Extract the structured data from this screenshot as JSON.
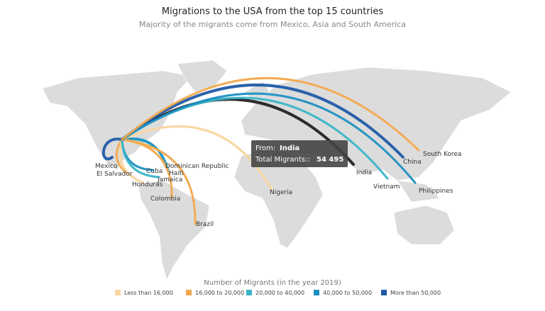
{
  "title": "Migrations to the USA from the top 15 countries",
  "subtitle": "Majority of the migrants come from Mexico, Asia and South America",
  "flows": [
    {
      "label": "Mexico",
      "color": "#1f5aa6"
    },
    {
      "label": "El Salvador",
      "color": "#f2a94e"
    },
    {
      "label": "Honduras",
      "color": "#f9d49c"
    },
    {
      "label": "Cuba",
      "color": "#1c8fc2"
    },
    {
      "label": "Jamaica",
      "color": "#3ab5c8"
    },
    {
      "label": "Haiti",
      "color": "#3ab5c8"
    },
    {
      "label": "Dominican Republic",
      "color": "#1c8fc2"
    },
    {
      "label": "Colombia",
      "color": "#f2a94e"
    },
    {
      "label": "Brazil",
      "color": "#f2a94e"
    },
    {
      "label": "Nigeria",
      "color": "#f9d49c"
    },
    {
      "label": "India",
      "color": "#222222"
    },
    {
      "label": "China",
      "color": "#1f5aa6"
    },
    {
      "label": "Vietnam",
      "color": "#3ab5c8"
    },
    {
      "label": "Philippines",
      "color": "#1c8fc2"
    },
    {
      "label": "South Korea",
      "color": "#f2a94e"
    }
  ],
  "tooltip": {
    "from_label": "From:",
    "from": "India",
    "total_label": "Total Migrants::",
    "total": "54 495"
  },
  "legend": {
    "title": "Number of Migrants (in the year 2019)",
    "items": [
      {
        "name": "Less than 16,000",
        "color": "#f9d49c"
      },
      {
        "name": "16,000 to 20,000",
        "color": "#f2a94e"
      },
      {
        "name": "20,000 to 40,000",
        "color": "#3ab5c8"
      },
      {
        "name": "40,000 to 50,000",
        "color": "#1c8fc2"
      },
      {
        "name": "More than 50,000",
        "color": "#1f5aa6"
      }
    ]
  }
}
